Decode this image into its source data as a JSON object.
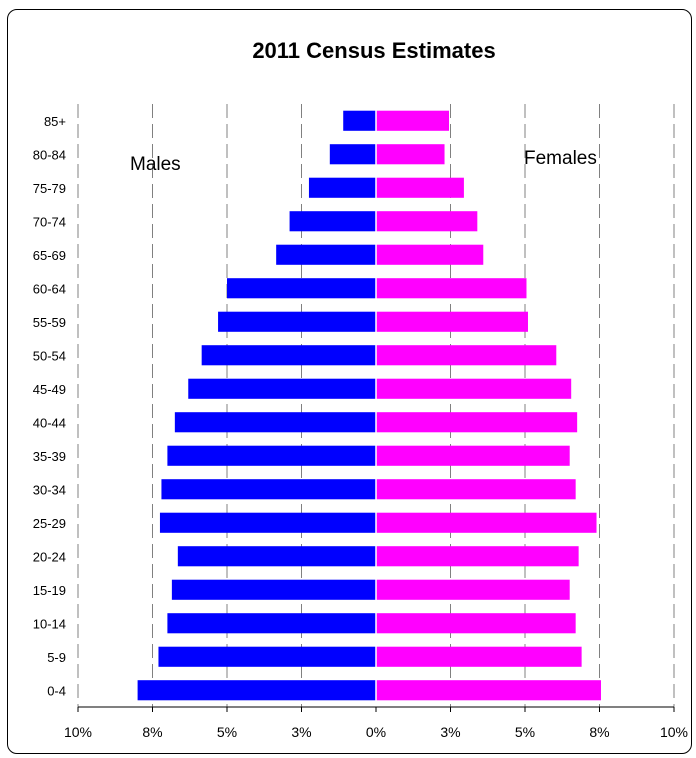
{
  "chart_data": {
    "type": "bar",
    "orientation": "horizontal",
    "layout": "population-pyramid",
    "title": "2011 Census Estimates",
    "annotations": {
      "left": "Males",
      "right": "Females"
    },
    "categories": [
      "0-4",
      "5-9",
      "10-14",
      "15-19",
      "20-24",
      "25-29",
      "30-34",
      "35-39",
      "40-44",
      "45-49",
      "50-54",
      "55-59",
      "60-64",
      "65-69",
      "70-74",
      "75-79",
      "80-84",
      "85+"
    ],
    "series": [
      {
        "name": "Males",
        "side": "left",
        "color": "#0000ff",
        "values": [
          8.0,
          7.3,
          7.0,
          6.85,
          6.65,
          7.25,
          7.2,
          7.0,
          6.75,
          6.3,
          5.85,
          5.3,
          5.0,
          3.35,
          2.9,
          2.25,
          1.55,
          1.1
        ]
      },
      {
        "name": "Females",
        "side": "right",
        "color": "#ff00ff",
        "values": [
          7.55,
          6.9,
          6.7,
          6.5,
          6.8,
          7.4,
          6.7,
          6.5,
          6.75,
          6.55,
          6.05,
          5.1,
          5.05,
          3.6,
          3.4,
          2.95,
          2.3,
          2.45
        ]
      }
    ],
    "xlim": [
      -10,
      10
    ],
    "xticks": [
      {
        "value": -10,
        "label": "10%"
      },
      {
        "value": -7.5,
        "label": "8%"
      },
      {
        "value": -5,
        "label": "5%"
      },
      {
        "value": -2.5,
        "label": "3%"
      },
      {
        "value": 0,
        "label": "0%"
      },
      {
        "value": 2.5,
        "label": "3%"
      },
      {
        "value": 5,
        "label": "5%"
      },
      {
        "value": 7.5,
        "label": "8%"
      },
      {
        "value": 10,
        "label": "10%"
      }
    ],
    "grid": {
      "vertical": true,
      "style": "dashed",
      "color": "#808080"
    }
  }
}
